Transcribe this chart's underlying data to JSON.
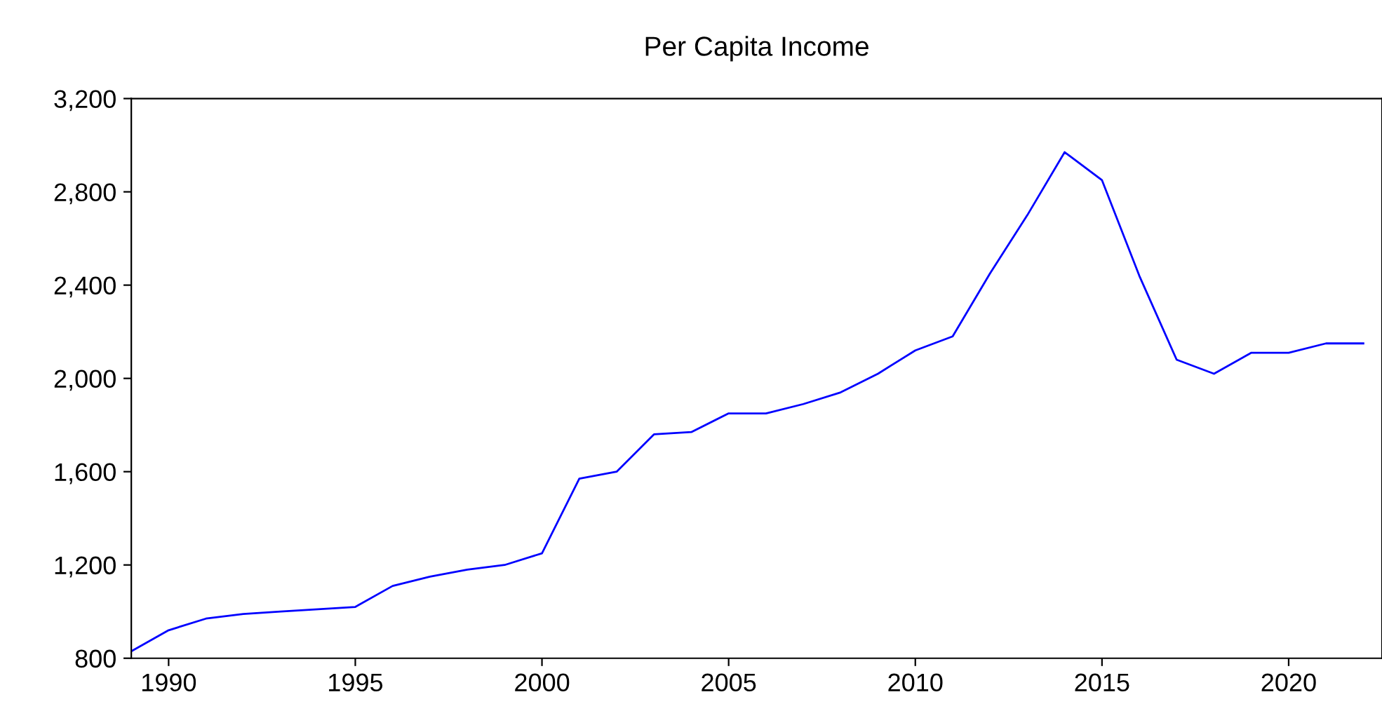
{
  "chart_data": {
    "type": "line",
    "title": "Per Capita Income",
    "x": [
      1989,
      1990,
      1991,
      1992,
      1993,
      1994,
      1995,
      1996,
      1997,
      1998,
      1999,
      2000,
      2001,
      2002,
      2003,
      2004,
      2005,
      2006,
      2007,
      2008,
      2009,
      2010,
      2011,
      2012,
      2013,
      2014,
      2015,
      2016,
      2017,
      2018,
      2019,
      2020,
      2021,
      2022
    ],
    "series": [
      {
        "color": "#0000ff",
        "values": [
          830,
          920,
          970,
          990,
          1000,
          1010,
          1020,
          1110,
          1150,
          1180,
          1200,
          1250,
          1570,
          1600,
          1760,
          1770,
          1850,
          1850,
          1890,
          1940,
          2020,
          2120,
          2180,
          2450,
          2700,
          2970,
          2850,
          2440,
          2080,
          2020,
          2110,
          2110,
          2150,
          2150
        ]
      }
    ],
    "xlim": [
      1989,
      2022.5
    ],
    "ylim": [
      800,
      3200
    ],
    "xticks": [
      1990,
      1995,
      2000,
      2005,
      2010,
      2015,
      2020
    ],
    "yticks": [
      {
        "value": 800,
        "label": "800"
      },
      {
        "value": 1200,
        "label": "1,200"
      },
      {
        "value": 1600,
        "label": "1,600"
      },
      {
        "value": 2000,
        "label": "2,000"
      },
      {
        "value": 2400,
        "label": "2,400"
      },
      {
        "value": 2800,
        "label": "2,800"
      },
      {
        "value": 3200,
        "label": "3,200"
      }
    ],
    "grid": false,
    "legend": false,
    "marker": "none",
    "line_style": "solid"
  }
}
